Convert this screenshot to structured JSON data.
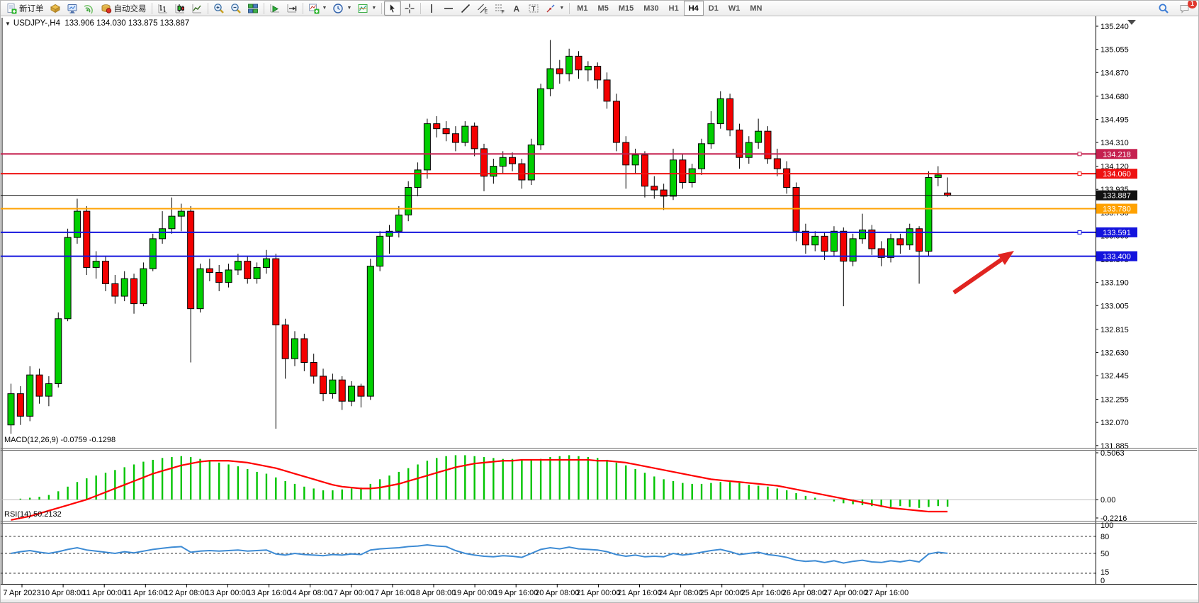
{
  "toolbar": {
    "items": [
      {
        "type": "button",
        "name": "new-order",
        "icon": "new-order-icon",
        "label": "新订单"
      },
      {
        "type": "button",
        "name": "new-chart",
        "icon": "new-chart-icon"
      },
      {
        "type": "button",
        "name": "profiles",
        "icon": "profiles-icon"
      },
      {
        "type": "button",
        "name": "signals",
        "icon": "signals-icon"
      },
      {
        "type": "button",
        "name": "auto-trading",
        "icon": "auto-trading-icon",
        "label": "自动交易"
      },
      {
        "type": "sep"
      },
      {
        "type": "button",
        "name": "bar-chart-mode",
        "icon": "bar-chart-icon"
      },
      {
        "type": "button",
        "name": "candlestick-chart-mode",
        "icon": "candlestick-chart-icon"
      },
      {
        "type": "button",
        "name": "line-chart-mode",
        "icon": "line-chart-icon"
      },
      {
        "type": "sep"
      },
      {
        "type": "button",
        "name": "zoom-in",
        "icon": "zoom-in-icon"
      },
      {
        "type": "button",
        "name": "zoom-out",
        "icon": "zoom-out-icon"
      },
      {
        "type": "button",
        "name": "tile-windows",
        "icon": "tile-windows-icon"
      },
      {
        "type": "sep"
      },
      {
        "type": "button",
        "name": "auto-scroll",
        "icon": "auto-scroll-icon"
      },
      {
        "type": "button",
        "name": "chart-shift",
        "icon": "chart-shift-icon"
      },
      {
        "type": "sep"
      },
      {
        "type": "button",
        "name": "indicators",
        "icon": "indicators-icon",
        "dropdown": true
      },
      {
        "type": "button",
        "name": "periods",
        "icon": "periods-icon",
        "dropdown": true
      },
      {
        "type": "button",
        "name": "templates",
        "icon": "templates-icon",
        "dropdown": true
      },
      {
        "type": "sep"
      },
      {
        "type": "button",
        "name": "cursor",
        "icon": "cursor-icon",
        "active": true
      },
      {
        "type": "button",
        "name": "crosshair",
        "icon": "crosshair-icon"
      },
      {
        "type": "sep"
      },
      {
        "type": "button",
        "name": "vertical-line",
        "icon": "vertical-line-icon"
      },
      {
        "type": "button",
        "name": "horizontal-line",
        "icon": "horizontal-line-icon"
      },
      {
        "type": "button",
        "name": "trendline",
        "icon": "trendline-icon"
      },
      {
        "type": "button",
        "name": "equidistant-channel",
        "icon": "equidistant-channel-icon"
      },
      {
        "type": "button",
        "name": "fibonacci",
        "icon": "fibonacci-icon"
      },
      {
        "type": "button",
        "name": "text",
        "icon": "text-icon"
      },
      {
        "type": "button",
        "name": "text-label",
        "icon": "text-label-icon"
      },
      {
        "type": "button",
        "name": "arrows",
        "icon": "arrows-icon",
        "dropdown": true
      },
      {
        "type": "sep"
      },
      {
        "type": "tf",
        "label": "M1"
      },
      {
        "type": "tf",
        "label": "M5"
      },
      {
        "type": "tf",
        "label": "M15"
      },
      {
        "type": "tf",
        "label": "M30"
      },
      {
        "type": "tf",
        "label": "H1"
      },
      {
        "type": "tf",
        "label": "H4",
        "active": true
      },
      {
        "type": "tf",
        "label": "D1"
      },
      {
        "type": "tf",
        "label": "W1"
      },
      {
        "type": "tf",
        "label": "MN"
      }
    ],
    "right_items": [
      {
        "type": "button",
        "name": "search",
        "icon": "search-icon"
      },
      {
        "type": "button",
        "name": "chat",
        "icon": "chat-icon",
        "badge": "1"
      }
    ]
  },
  "chart_data": {
    "type": "candlestick",
    "symbol": "USDJPY-,H4",
    "timeframe": "H4",
    "title_triangle": "▼",
    "ohlc_text": "133.906 134.030 133.875 133.887",
    "current_bar": {
      "open": 133.906,
      "high": 134.03,
      "low": 133.875,
      "close": 133.887
    },
    "ylim": [
      131.885,
      135.24
    ],
    "y_ticks": [
      "135.240",
      "135.055",
      "134.870",
      "134.680",
      "134.495",
      "134.310",
      "134.120",
      "133.935",
      "133.750",
      "133.565",
      "133.375",
      "133.190",
      "133.005",
      "132.815",
      "132.630",
      "132.445",
      "132.255",
      "132.070",
      "131.885"
    ],
    "x_labels": [
      "7 Apr 2023",
      "10 Apr 08:00",
      "11 Apr 00:00",
      "11 Apr 16:00",
      "12 Apr 08:00",
      "13 Apr 00:00",
      "13 Apr 16:00",
      "14 Apr 08:00",
      "17 Apr 00:00",
      "17 Apr 16:00",
      "18 Apr 08:00",
      "19 Apr 00:00",
      "19 Apr 16:00",
      "20 Apr 08:00",
      "21 Apr 00:00",
      "21 Apr 16:00",
      "24 Apr 08:00",
      "25 Apr 00:00",
      "25 Apr 16:00",
      "26 Apr 08:00",
      "27 Apr 00:00",
      "27 Apr 16:00"
    ],
    "colors": {
      "bull": "#00cf00",
      "bear": "#f40000",
      "outline": "#000000",
      "macd_hist": "#00c400",
      "macd_signal": "#ff0000",
      "rsi_line": "#3d8bd4"
    },
    "horizontal_lines": [
      {
        "price": 134.218,
        "label": "134.218",
        "color": "#c5204f",
        "width": 2,
        "handle": true
      },
      {
        "price": 134.06,
        "label": "134.060",
        "color": "#ee1111",
        "width": 2,
        "handle": true
      },
      {
        "price": 133.887,
        "label": "133.887",
        "color": "#111111",
        "width": 1,
        "handle": false
      },
      {
        "price": 133.78,
        "label": "133.780",
        "color": "#ffa200",
        "width": 2,
        "handle": false
      },
      {
        "price": 133.591,
        "label": "133.591",
        "color": "#1414dd",
        "width": 2,
        "handle": true
      },
      {
        "price": 133.4,
        "label": "133.400",
        "color": "#1414dd",
        "width": 2,
        "handle": false
      }
    ],
    "candles_ohlc": [
      [
        132.05,
        132.38,
        131.98,
        132.3
      ],
      [
        132.3,
        132.36,
        132.05,
        132.12
      ],
      [
        132.12,
        132.52,
        132.08,
        132.45
      ],
      [
        132.45,
        132.5,
        132.22,
        132.28
      ],
      [
        132.28,
        132.44,
        132.2,
        132.38
      ],
      [
        132.38,
        132.95,
        132.35,
        132.9
      ],
      [
        132.9,
        133.62,
        132.88,
        133.55
      ],
      [
        133.55,
        133.86,
        133.5,
        133.76
      ],
      [
        133.76,
        133.8,
        133.25,
        133.31
      ],
      [
        133.31,
        133.44,
        133.22,
        133.36
      ],
      [
        133.36,
        133.4,
        133.12,
        133.18
      ],
      [
        133.18,
        133.25,
        133.02,
        133.08
      ],
      [
        133.08,
        133.28,
        133.04,
        133.22
      ],
      [
        133.22,
        133.26,
        132.94,
        133.02
      ],
      [
        133.02,
        133.35,
        133.0,
        133.3
      ],
      [
        133.3,
        133.58,
        133.28,
        133.54
      ],
      [
        133.54,
        133.76,
        133.5,
        133.62
      ],
      [
        133.62,
        133.87,
        133.58,
        133.72
      ],
      [
        133.72,
        133.82,
        133.6,
        133.76
      ],
      [
        133.76,
        133.8,
        132.55,
        132.98
      ],
      [
        132.98,
        133.34,
        132.95,
        133.3
      ],
      [
        133.3,
        133.38,
        133.2,
        133.27
      ],
      [
        133.27,
        133.33,
        133.12,
        133.19
      ],
      [
        133.19,
        133.34,
        133.15,
        133.29
      ],
      [
        133.29,
        133.42,
        133.25,
        133.36
      ],
      [
        133.36,
        133.4,
        133.18,
        133.22
      ],
      [
        133.22,
        133.35,
        133.18,
        133.31
      ],
      [
        133.31,
        133.45,
        133.26,
        133.38
      ],
      [
        133.38,
        133.42,
        132.02,
        132.85
      ],
      [
        132.85,
        132.9,
        132.42,
        132.58
      ],
      [
        132.58,
        132.8,
        132.52,
        132.74
      ],
      [
        132.74,
        132.78,
        132.48,
        132.55
      ],
      [
        132.55,
        132.62,
        132.38,
        132.44
      ],
      [
        132.44,
        132.5,
        132.24,
        132.3
      ],
      [
        132.3,
        132.46,
        132.26,
        132.41
      ],
      [
        132.41,
        132.44,
        132.17,
        132.24
      ],
      [
        132.24,
        132.4,
        132.2,
        132.36
      ],
      [
        132.36,
        132.38,
        132.19,
        132.28
      ],
      [
        132.28,
        133.38,
        132.25,
        133.32
      ],
      [
        133.32,
        133.6,
        133.28,
        133.56
      ],
      [
        133.56,
        133.65,
        133.42,
        133.6
      ],
      [
        133.6,
        133.8,
        133.55,
        133.73
      ],
      [
        133.73,
        134.0,
        133.68,
        133.95
      ],
      [
        133.95,
        134.15,
        133.88,
        134.09
      ],
      [
        134.09,
        134.5,
        134.02,
        134.46
      ],
      [
        134.46,
        134.52,
        134.35,
        134.42
      ],
      [
        134.42,
        134.48,
        134.32,
        134.38
      ],
      [
        134.38,
        134.44,
        134.24,
        134.31
      ],
      [
        134.31,
        134.48,
        134.28,
        134.44
      ],
      [
        134.44,
        134.47,
        134.2,
        134.26
      ],
      [
        134.26,
        134.3,
        133.92,
        134.04
      ],
      [
        134.04,
        134.18,
        133.98,
        134.12
      ],
      [
        134.12,
        134.24,
        134.06,
        134.19
      ],
      [
        134.19,
        134.23,
        134.08,
        134.14
      ],
      [
        134.14,
        134.18,
        133.94,
        134.01
      ],
      [
        134.01,
        134.34,
        133.97,
        134.29
      ],
      [
        134.29,
        134.78,
        134.25,
        134.74
      ],
      [
        134.74,
        135.13,
        134.68,
        134.9
      ],
      [
        134.9,
        134.97,
        134.78,
        134.86
      ],
      [
        134.86,
        135.06,
        134.8,
        135.0
      ],
      [
        135.0,
        135.04,
        134.82,
        134.89
      ],
      [
        134.89,
        134.96,
        134.8,
        134.92
      ],
      [
        134.92,
        134.95,
        134.74,
        134.81
      ],
      [
        134.81,
        134.87,
        134.58,
        134.64
      ],
      [
        134.64,
        134.7,
        134.24,
        134.31
      ],
      [
        134.31,
        134.36,
        133.94,
        134.13
      ],
      [
        134.13,
        134.26,
        134.06,
        134.21
      ],
      [
        134.21,
        134.24,
        133.87,
        133.96
      ],
      [
        133.96,
        134.04,
        133.86,
        133.93
      ],
      [
        133.93,
        133.98,
        133.77,
        133.88
      ],
      [
        133.88,
        134.26,
        133.85,
        134.17
      ],
      [
        134.17,
        134.22,
        133.94,
        133.99
      ],
      [
        133.99,
        134.14,
        133.95,
        134.1
      ],
      [
        134.1,
        134.34,
        134.05,
        134.3
      ],
      [
        134.3,
        134.56,
        134.26,
        134.46
      ],
      [
        134.46,
        134.72,
        134.42,
        134.66
      ],
      [
        134.66,
        134.7,
        134.36,
        134.41
      ],
      [
        134.41,
        134.46,
        134.1,
        134.19
      ],
      [
        134.19,
        134.36,
        134.14,
        134.31
      ],
      [
        134.31,
        134.5,
        134.26,
        134.4
      ],
      [
        134.4,
        134.44,
        134.14,
        134.18
      ],
      [
        134.18,
        134.26,
        134.04,
        134.1
      ],
      [
        134.1,
        134.16,
        133.9,
        133.95
      ],
      [
        133.95,
        133.99,
        133.52,
        133.6
      ],
      [
        133.6,
        133.66,
        133.42,
        133.49
      ],
      [
        133.49,
        133.6,
        133.44,
        133.56
      ],
      [
        133.56,
        133.59,
        133.37,
        133.44
      ],
      [
        133.44,
        133.64,
        133.4,
        133.6
      ],
      [
        133.6,
        133.63,
        133.0,
        133.36
      ],
      [
        133.36,
        133.58,
        133.32,
        133.54
      ],
      [
        133.54,
        133.74,
        133.5,
        133.61
      ],
      [
        133.61,
        133.65,
        133.41,
        133.46
      ],
      [
        133.46,
        133.52,
        133.32,
        133.39
      ],
      [
        133.39,
        133.58,
        133.35,
        133.54
      ],
      [
        133.54,
        133.58,
        133.42,
        133.49
      ],
      [
        133.49,
        133.66,
        133.45,
        133.62
      ],
      [
        133.62,
        133.64,
        133.18,
        133.44
      ],
      [
        133.44,
        134.08,
        133.4,
        134.03
      ],
      [
        134.03,
        134.12,
        133.96,
        134.05
      ],
      [
        133.906,
        134.03,
        133.875,
        133.887
      ]
    ],
    "indicators": {
      "macd": {
        "label": "MACD(12,26,9)",
        "values_text": "-0.0759 -0.1298",
        "main_value": -0.0759,
        "signal_value": -0.1298,
        "axis_labels": [
          "0.5063",
          "0.00",
          "-0.2216"
        ],
        "range": [
          -0.2216,
          0.5063
        ],
        "histogram": [
          0.0,
          0.01,
          0.02,
          0.03,
          0.05,
          0.09,
          0.14,
          0.19,
          0.23,
          0.26,
          0.29,
          0.32,
          0.35,
          0.38,
          0.41,
          0.43,
          0.45,
          0.46,
          0.47,
          0.46,
          0.44,
          0.42,
          0.4,
          0.38,
          0.36,
          0.33,
          0.3,
          0.28,
          0.24,
          0.2,
          0.17,
          0.14,
          0.12,
          0.1,
          0.1,
          0.11,
          0.12,
          0.13,
          0.17,
          0.22,
          0.26,
          0.3,
          0.34,
          0.38,
          0.42,
          0.45,
          0.47,
          0.48,
          0.48,
          0.47,
          0.46,
          0.45,
          0.44,
          0.44,
          0.43,
          0.43,
          0.44,
          0.46,
          0.47,
          0.48,
          0.47,
          0.46,
          0.45,
          0.43,
          0.4,
          0.37,
          0.33,
          0.29,
          0.25,
          0.22,
          0.2,
          0.18,
          0.17,
          0.17,
          0.18,
          0.19,
          0.19,
          0.18,
          0.16,
          0.15,
          0.14,
          0.12,
          0.1,
          0.07,
          0.04,
          0.02,
          0.0,
          -0.02,
          -0.04,
          -0.05,
          -0.06,
          -0.07,
          -0.08,
          -0.08,
          -0.07,
          -0.08,
          -0.09,
          -0.08,
          -0.07,
          -0.0759
        ],
        "signal_line": [
          -0.22,
          -0.2,
          -0.18,
          -0.15,
          -0.12,
          -0.09,
          -0.06,
          -0.03,
          0.0,
          0.04,
          0.08,
          0.12,
          0.16,
          0.2,
          0.24,
          0.28,
          0.31,
          0.34,
          0.37,
          0.39,
          0.41,
          0.42,
          0.42,
          0.42,
          0.41,
          0.4,
          0.38,
          0.36,
          0.34,
          0.31,
          0.28,
          0.25,
          0.22,
          0.19,
          0.16,
          0.14,
          0.13,
          0.12,
          0.12,
          0.13,
          0.15,
          0.17,
          0.2,
          0.23,
          0.26,
          0.29,
          0.32,
          0.35,
          0.37,
          0.39,
          0.4,
          0.41,
          0.42,
          0.42,
          0.43,
          0.43,
          0.43,
          0.43,
          0.43,
          0.43,
          0.43,
          0.43,
          0.42,
          0.42,
          0.41,
          0.4,
          0.38,
          0.36,
          0.34,
          0.32,
          0.3,
          0.28,
          0.26,
          0.24,
          0.22,
          0.21,
          0.2,
          0.19,
          0.18,
          0.17,
          0.16,
          0.15,
          0.13,
          0.11,
          0.09,
          0.07,
          0.05,
          0.03,
          0.01,
          -0.01,
          -0.03,
          -0.05,
          -0.07,
          -0.09,
          -0.1,
          -0.11,
          -0.12,
          -0.13,
          -0.13,
          -0.1298
        ]
      },
      "rsi": {
        "label": "RSI(14)",
        "value_text": "50.2132",
        "value": 50.2132,
        "axis_labels": [
          "100",
          "80",
          "50",
          "15",
          "0"
        ],
        "levels": [
          80,
          50,
          15
        ],
        "series": [
          50,
          53,
          55,
          52,
          50,
          53,
          57,
          60,
          56,
          54,
          52,
          50,
          53,
          51,
          54,
          57,
          59,
          61,
          62,
          52,
          54,
          55,
          54,
          55,
          56,
          54,
          55,
          56,
          49,
          47,
          50,
          48,
          47,
          46,
          48,
          47,
          49,
          48,
          56,
          58,
          59,
          60,
          62,
          63,
          65,
          63,
          62,
          55,
          50,
          47,
          45,
          44,
          46,
          45,
          43,
          50,
          57,
          60,
          58,
          61,
          58,
          57,
          56,
          53,
          48,
          45,
          47,
          44,
          45,
          44,
          50,
          47,
          49,
          52,
          55,
          57,
          53,
          48,
          50,
          52,
          48,
          46,
          43,
          38,
          36,
          37,
          34,
          37,
          33,
          36,
          38,
          35,
          34,
          37,
          35,
          38,
          35,
          49,
          52,
          50.21
        ]
      }
    },
    "annotation": {
      "type": "arrow",
      "color": "#e02420"
    }
  }
}
